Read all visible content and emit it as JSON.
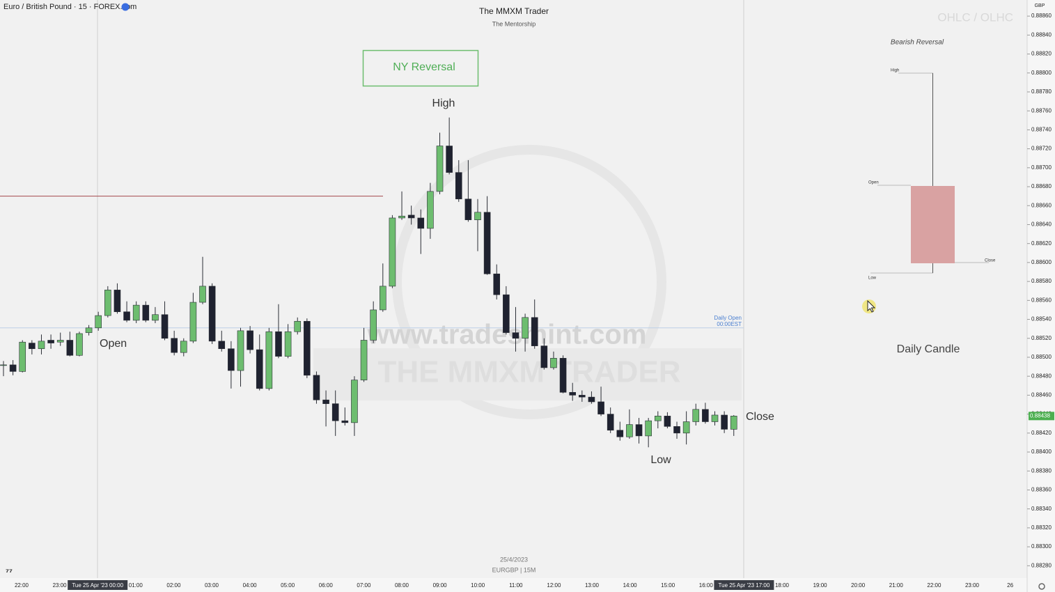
{
  "header": {
    "symbol": "Euro / British Pound · 15 · FOREX.com",
    "title": "The MMXM Trader",
    "subtitle": "The Mentorship",
    "date": "25/4/2023",
    "ticker": "EURGBP | 15M",
    "watermark_url": "www.tradesmint.com",
    "watermark_brand": "THE MMXM TRADER"
  },
  "inset": {
    "heading": "OHLC / OLHC",
    "title": "Bearish Reversal",
    "high": "High",
    "open": "Open",
    "close": "Close",
    "low": "Low",
    "caption": "Daily Candle"
  },
  "chart_data": {
    "type": "candlestick",
    "currency": "GBP",
    "up_color": "#6dbd6f",
    "down_color": "#1f2230",
    "open": [
      0.88492,
      0.88492,
      0.88485,
      0.88515,
      0.88509,
      0.88518,
      0.88516,
      0.88518,
      0.88502,
      0.88526,
      0.88531,
      0.88544,
      0.88571,
      0.88548,
      0.88539,
      0.88555,
      0.88539,
      0.88545,
      0.8852,
      0.88505,
      0.88517,
      0.88558,
      0.88575,
      0.88517,
      0.88509,
      0.88486,
      0.88528,
      0.88508,
      0.88467,
      0.88527,
      0.88501,
      0.88527,
      0.88538,
      0.88481,
      0.88455,
      0.88451,
      0.88433,
      0.88431,
      0.88476,
      0.88518,
      0.8855,
      0.88575,
      0.88647,
      0.8865,
      0.88647,
      0.88636,
      0.88675,
      0.88723,
      0.88695,
      0.88667,
      0.88645,
      0.88653,
      0.88588,
      0.88566,
      0.88526,
      0.8852,
      0.88542,
      0.88512,
      0.88489,
      0.88499,
      0.88463,
      0.8846,
      0.88458,
      0.88453,
      0.8844,
      0.88423,
      0.88416,
      0.88429,
      0.88417,
      0.88433,
      0.88438,
      0.88427,
      0.8842,
      0.88432,
      0.88445,
      0.88432,
      0.88439,
      0.88424
    ],
    "high": [
      0.88496,
      0.88497,
      0.88518,
      0.88518,
      0.88524,
      0.88524,
      0.88526,
      0.88527,
      0.88527,
      0.88534,
      0.88548,
      0.88575,
      0.88578,
      0.88559,
      0.88559,
      0.88559,
      0.88553,
      0.88559,
      0.88528,
      0.8852,
      0.88568,
      0.88606,
      0.88578,
      0.88528,
      0.88517,
      0.88531,
      0.88533,
      0.88524,
      0.88531,
      0.88556,
      0.88535,
      0.88542,
      0.88541,
      0.88485,
      0.88465,
      0.88465,
      0.88447,
      0.8848,
      0.88531,
      0.88559,
      0.88599,
      0.8865,
      0.88675,
      0.8866,
      0.88656,
      0.88684,
      0.88737,
      0.88753,
      0.88708,
      0.88708,
      0.88667,
      0.8867,
      0.88598,
      0.88575,
      0.88553,
      0.88546,
      0.88561,
      0.8852,
      0.88506,
      0.88502,
      0.88473,
      0.88465,
      0.88464,
      0.88469,
      0.88447,
      0.88432,
      0.88445,
      0.88436,
      0.88436,
      0.88443,
      0.88442,
      0.88432,
      0.88443,
      0.88451,
      0.88452,
      0.88443,
      0.88443,
      0.88439
    ],
    "low": [
      0.8848,
      0.88481,
      0.88484,
      0.88503,
      0.88503,
      0.88509,
      0.88512,
      0.88501,
      0.88501,
      0.88523,
      0.88528,
      0.88542,
      0.88546,
      0.88537,
      0.88536,
      0.88537,
      0.88536,
      0.88518,
      0.88502,
      0.88501,
      0.88515,
      0.88556,
      0.88514,
      0.88506,
      0.88467,
      0.88469,
      0.88504,
      0.88465,
      0.88465,
      0.88499,
      0.88499,
      0.88524,
      0.88478,
      0.88451,
      0.88427,
      0.88417,
      0.88428,
      0.88417,
      0.88474,
      0.88515,
      0.88548,
      0.88573,
      0.88645,
      0.8864,
      0.88609,
      0.88625,
      0.88672,
      0.88693,
      0.88664,
      0.88643,
      0.88612,
      0.88587,
      0.88561,
      0.88524,
      0.88506,
      0.88506,
      0.88509,
      0.88487,
      0.88487,
      0.88462,
      0.88454,
      0.88453,
      0.88451,
      0.88438,
      0.8842,
      0.88412,
      0.88414,
      0.88409,
      0.88405,
      0.88425,
      0.88425,
      0.88414,
      0.88408,
      0.88428,
      0.8843,
      0.88428,
      0.8842,
      0.88417
    ],
    "close": [
      0.88492,
      0.88485,
      0.88516,
      0.88509,
      0.88517,
      0.88515,
      0.88518,
      0.88502,
      0.88525,
      0.88531,
      0.88544,
      0.88571,
      0.88548,
      0.88539,
      0.88555,
      0.88539,
      0.88545,
      0.8852,
      0.88505,
      0.88517,
      0.88558,
      0.88575,
      0.88517,
      0.88509,
      0.88486,
      0.88528,
      0.88508,
      0.88467,
      0.88527,
      0.88501,
      0.88527,
      0.88538,
      0.88481,
      0.88455,
      0.88451,
      0.88433,
      0.88431,
      0.88476,
      0.88518,
      0.8855,
      0.88575,
      0.88647,
      0.88649,
      0.88647,
      0.88636,
      0.88675,
      0.88723,
      0.88695,
      0.88667,
      0.88645,
      0.88653,
      0.88588,
      0.88566,
      0.88526,
      0.8852,
      0.88542,
      0.88512,
      0.88489,
      0.88499,
      0.88463,
      0.8846,
      0.88458,
      0.88453,
      0.8844,
      0.88423,
      0.88416,
      0.88429,
      0.88417,
      0.88433,
      0.88438,
      0.88427,
      0.8842,
      0.88432,
      0.88445,
      0.88432,
      0.88439,
      0.88424,
      0.88438
    ],
    "last_price": {
      "value": 0.88438,
      "label": "0.88438"
    },
    "levels": [
      {
        "value": 0.8867,
        "color": "#a3474b"
      },
      {
        "value": 0.88531,
        "color": "#bcd0e8"
      }
    ],
    "annotations": {
      "ny_reversal": "NY Reversal",
      "high": "High",
      "open": "Open",
      "low": "Low",
      "close": "Close",
      "daily_open": "Daily Open",
      "daily_open_time": "00:00EST"
    },
    "ylim": [
      0.88267,
      0.88877
    ],
    "yticks": [
      {
        "value": 0.8886,
        "label": "0.88860"
      },
      {
        "value": 0.8884,
        "label": "0.88840"
      },
      {
        "value": 0.8882,
        "label": "0.88820"
      },
      {
        "value": 0.888,
        "label": "0.88800"
      },
      {
        "value": 0.8878,
        "label": "0.88780"
      },
      {
        "value": 0.8876,
        "label": "0.88760"
      },
      {
        "value": 0.8874,
        "label": "0.88740"
      },
      {
        "value": 0.8872,
        "label": "0.88720"
      },
      {
        "value": 0.887,
        "label": "0.88700"
      },
      {
        "value": 0.8868,
        "label": "0.88680"
      },
      {
        "value": 0.8866,
        "label": "0.88660"
      },
      {
        "value": 0.8864,
        "label": "0.88640"
      },
      {
        "value": 0.8862,
        "label": "0.88620"
      },
      {
        "value": 0.886,
        "label": "0.88600"
      },
      {
        "value": 0.8858,
        "label": "0.88580"
      },
      {
        "value": 0.8856,
        "label": "0.88560"
      },
      {
        "value": 0.8854,
        "label": "0.88540"
      },
      {
        "value": 0.8852,
        "label": "0.88520"
      },
      {
        "value": 0.885,
        "label": "0.88500"
      },
      {
        "value": 0.8848,
        "label": "0.88480"
      },
      {
        "value": 0.8846,
        "label": "0.88460"
      },
      {
        "value": 0.8844,
        "label": "0.88440"
      },
      {
        "value": 0.8842,
        "label": "0.88420"
      },
      {
        "value": 0.884,
        "label": "0.88400"
      },
      {
        "value": 0.8838,
        "label": "0.88380"
      },
      {
        "value": 0.8836,
        "label": "0.88360"
      },
      {
        "value": 0.8834,
        "label": "0.88340"
      },
      {
        "value": 0.8832,
        "label": "0.88320"
      },
      {
        "value": 0.883,
        "label": "0.88300"
      },
      {
        "value": 0.8828,
        "label": "0.88280"
      }
    ],
    "xticks": [
      "22:00",
      "23:00",
      "Tue 25 Apr '23  00:00",
      "01:00",
      "02:00",
      "03:00",
      "04:00",
      "05:00",
      "06:00",
      "07:00",
      "08:00",
      "09:00",
      "10:00",
      "11:00",
      "12:00",
      "13:00",
      "14:00",
      "15:00",
      "16:00",
      "Tue 25 Apr '23  17:00",
      "18:00",
      "19:00",
      "20:00",
      "21:00",
      "22:00",
      "23:00",
      "26"
    ]
  }
}
